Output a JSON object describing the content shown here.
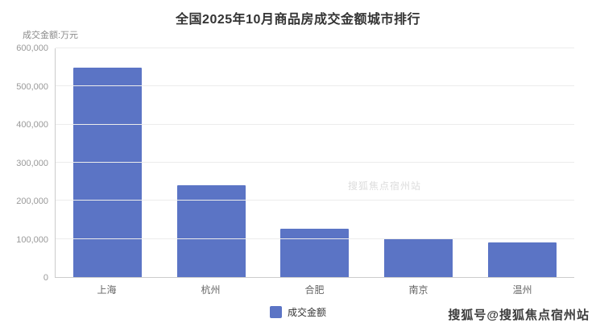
{
  "title": "全国2025年10月商品房成交金额城市排行",
  "axis_unit": "成交金额:万元",
  "legend": {
    "label": "成交金额"
  },
  "watermark": "搜狐号@搜狐焦点宿州站",
  "watermark_faint": "搜狐焦点宿州站",
  "chart_data": {
    "type": "bar",
    "categories": [
      "上海",
      "杭州",
      "合肥",
      "南京",
      "温州"
    ],
    "values": [
      550000,
      240000,
      126000,
      102000,
      91000
    ],
    "series": [
      {
        "name": "成交金额",
        "values": [
          550000,
          240000,
          126000,
          102000,
          91000
        ]
      }
    ],
    "title": "全国2025年10月商品房成交金额城市排行",
    "xlabel": "",
    "ylabel": "成交金额:万元",
    "ylim": [
      0,
      600000
    ],
    "ytick_step": 100000,
    "ytick_labels": [
      "0",
      "100,000",
      "200,000",
      "300,000",
      "400,000",
      "500,000",
      "600,000"
    ],
    "bar_color": "#5b74c5",
    "grid": true,
    "legend_entries": [
      "成交金额"
    ],
    "legend_position": "bottom"
  }
}
